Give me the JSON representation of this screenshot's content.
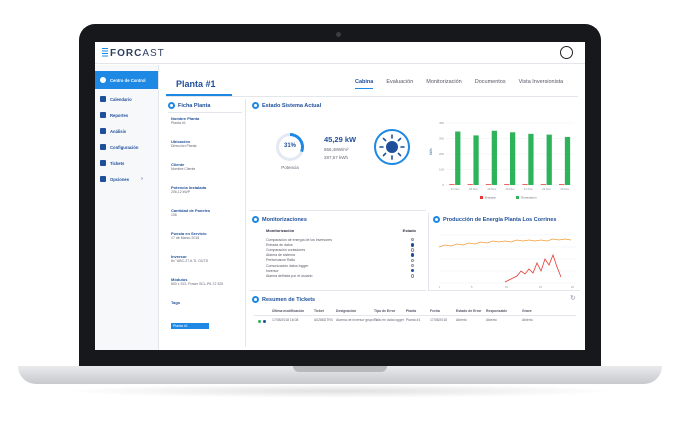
{
  "app": {
    "logo_bold": "FORC",
    "logo_thin": "AST"
  },
  "sidebar": {
    "items": [
      {
        "label": "Centro de Control",
        "active": true
      },
      {
        "label": "Calendario"
      },
      {
        "label": "Reportes"
      },
      {
        "label": "Análisis"
      },
      {
        "label": "Configuración"
      },
      {
        "label": "Tickets"
      },
      {
        "label": "Opciones",
        "chevron": "›"
      }
    ]
  },
  "header": {
    "title": "Planta #1",
    "tabs": [
      "Cabina",
      "Evaluación",
      "Monitorización",
      "Documentos",
      "Vista Inversionista"
    ],
    "active_tab": "Cabina"
  },
  "ficha": {
    "title": "Ficha Planta",
    "fields": [
      {
        "label": "Nombre Planta",
        "value": "Planta #1"
      },
      {
        "label": "Ubicación",
        "value": "Dirección Planta"
      },
      {
        "label": "Cliente",
        "value": "Nombre Cliente"
      },
      {
        "label": "Potencia instalada",
        "value": "206,12 kWP"
      },
      {
        "label": "Cantidad de Paneles",
        "value": "106"
      },
      {
        "label": "Puesta en Servicio",
        "value": "17 de Marzo 2018"
      },
      {
        "label": "Inversor",
        "value": "8x \"ABC-27,6-TL OUTD"
      },
      {
        "label": "Módulos",
        "value": "800 x SCL Power SCL-P6-72 325"
      },
      {
        "label": "Tags",
        "value": ""
      }
    ],
    "tag": "Planta #1"
  },
  "estado": {
    "title": "Estado Sistema Actual",
    "gauge_percent": 31,
    "gauge_label": "31%",
    "gauge_caption": "Potencia",
    "power": "45,29 kW",
    "irradiance": "866,48W/m²",
    "energy": "287,57 kWh",
    "icon": "sun-icon"
  },
  "chart_data": {
    "type": "bar",
    "categories": [
      "17-Nov",
      "18-Nov",
      "19-Nov",
      "20-Nov",
      "21-Nov",
      "22-Nov",
      "23-Nov"
    ],
    "ylabel": "kWh",
    "yticks": [
      "0",
      "100",
      "200",
      "300",
      "400"
    ],
    "ylim": [
      0,
      400
    ],
    "series": [
      {
        "name": "Energía",
        "color": "#e53935",
        "values": [
          5,
          5,
          5,
          5,
          5,
          5,
          5
        ]
      },
      {
        "name": "Generación",
        "color": "#2eb35a",
        "values": [
          345,
          320,
          350,
          340,
          330,
          325,
          310
        ]
      }
    ],
    "legend": "bottom"
  },
  "monit": {
    "title": "Monitorizaciones",
    "col_left": "Monitorización",
    "col_right": "Estado",
    "rows": [
      {
        "label": "Comparación de energía de los inversores",
        "on": false
      },
      {
        "label": "Entrada de datos",
        "on": true
      },
      {
        "label": "Comparación contadores",
        "on": false
      },
      {
        "label": "Alarma de sistema",
        "on": true
      },
      {
        "label": "Performance Ratio",
        "on": false
      },
      {
        "label": "Comunicación datos logger",
        "on": false
      },
      {
        "label": "Inversor",
        "on": true
      },
      {
        "label": "Alarma definida por el usuario",
        "on": false
      }
    ]
  },
  "produccion": {
    "title": "Producción de Energía Planta Los Corrines"
  },
  "tickets": {
    "title": "Resumen de Tickets",
    "columns": [
      "Última modificación",
      "Ticket",
      "Designación",
      "Tipo de Error",
      "Planta",
      "Fecha",
      "Estado de Error",
      "Responsable",
      "Grave"
    ],
    "rows": [
      {
        "values": [
          "17/08/2018 16:08",
          "A0286DTR4",
          "Alarma de inversor grupo 3",
          "Fallo en data logger",
          "Planta #1",
          "17/08/2018",
          "Abierto",
          "Abierto",
          "Abierto"
        ]
      }
    ]
  }
}
